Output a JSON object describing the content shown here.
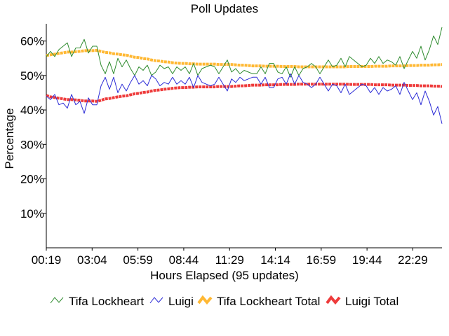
{
  "chart_data": {
    "type": "line",
    "title": "Poll Updates",
    "xlabel": "Hours Elapsed (95 updates)",
    "ylabel": "Percentage",
    "ylim": [
      0,
      65
    ],
    "yticks": [
      10,
      20,
      30,
      40,
      50,
      60
    ],
    "ytick_labels": [
      "10%",
      "20%",
      "30%",
      "40%",
      "50%",
      "60%"
    ],
    "xlim": [
      0,
      95
    ],
    "xticks": [
      0,
      11,
      22,
      33,
      44,
      55,
      66,
      77,
      88
    ],
    "xtick_labels": [
      "00:19",
      "03:04",
      "05:59",
      "08:44",
      "11:29",
      "14:14",
      "16:59",
      "19:44",
      "22:29"
    ],
    "grid": false,
    "legend_position": "bottom",
    "series": [
      {
        "name": "Tifa Lockheart",
        "color": "#2e8b2e",
        "values": [
          55.5,
          57.0,
          55.5,
          57.5,
          58.5,
          59.5,
          55.5,
          58.0,
          58.0,
          60.5,
          56.5,
          58.5,
          58.5,
          53.0,
          50.5,
          54.0,
          50.5,
          55.0,
          52.5,
          54.5,
          52.0,
          50.0,
          52.5,
          51.5,
          53.0,
          50.0,
          51.0,
          53.0,
          52.0,
          52.5,
          50.5,
          52.5,
          51.5,
          52.5,
          50.5,
          53.5,
          50.0,
          52.0,
          52.5,
          53.0,
          52.5,
          50.5,
          52.5,
          54.5,
          51.0,
          52.0,
          50.5,
          51.5,
          51.0,
          50.5,
          50.5,
          52.5,
          50.5,
          53.5,
          53.5,
          51.0,
          50.5,
          52.5,
          49.5,
          52.5,
          50.0,
          52.0,
          52.5,
          53.5,
          52.5,
          50.5,
          52.5,
          54.5,
          52.5,
          53.0,
          55.0,
          52.5,
          55.5,
          54.5,
          53.5,
          52.5,
          53.0,
          55.0,
          53.5,
          55.5,
          53.5,
          54.5,
          54.0,
          53.0,
          55.5,
          52.0,
          54.5,
          57.0,
          55.0,
          58.5,
          54.5,
          57.5,
          61.5,
          59.0,
          64.0
        ]
      },
      {
        "name": "Luigi",
        "color": "#2b2bd6",
        "values": [
          44.0,
          43.0,
          44.5,
          41.5,
          42.0,
          40.5,
          44.5,
          41.5,
          42.5,
          39.0,
          43.5,
          41.5,
          41.5,
          47.0,
          49.5,
          46.0,
          49.5,
          45.0,
          47.5,
          45.5,
          48.0,
          50.0,
          47.5,
          48.5,
          47.0,
          50.0,
          49.0,
          47.0,
          48.0,
          47.5,
          49.5,
          47.5,
          48.5,
          47.5,
          49.5,
          46.5,
          50.0,
          48.0,
          47.5,
          47.0,
          47.5,
          49.5,
          47.5,
          45.5,
          49.0,
          48.0,
          49.5,
          48.5,
          49.0,
          49.5,
          49.5,
          47.5,
          49.5,
          46.5,
          46.5,
          49.0,
          49.5,
          47.5,
          50.5,
          47.5,
          50.0,
          48.0,
          47.5,
          46.5,
          47.5,
          49.5,
          47.5,
          45.5,
          47.5,
          47.0,
          45.0,
          47.5,
          44.5,
          45.5,
          46.5,
          47.5,
          47.0,
          45.0,
          46.5,
          44.5,
          46.5,
          45.5,
          46.0,
          47.0,
          44.5,
          48.0,
          45.5,
          43.0,
          45.0,
          41.5,
          45.5,
          42.5,
          38.5,
          41.0,
          36.0
        ]
      },
      {
        "name": "Tifa Lockheart Total",
        "color": "#ffb833",
        "values": [
          55.8,
          56.0,
          56.2,
          56.4,
          56.6,
          56.8,
          56.8,
          56.9,
          57.0,
          57.2,
          57.2,
          57.2,
          57.3,
          57.0,
          56.7,
          56.6,
          56.3,
          56.2,
          56.0,
          55.9,
          55.6,
          55.3,
          55.2,
          54.9,
          54.8,
          54.5,
          54.3,
          54.2,
          54.0,
          53.9,
          53.7,
          53.6,
          53.5,
          53.5,
          53.4,
          53.4,
          53.3,
          53.3,
          53.3,
          53.3,
          53.3,
          53.2,
          53.2,
          53.2,
          53.2,
          53.1,
          53.0,
          53.0,
          52.9,
          52.8,
          52.8,
          52.8,
          52.7,
          52.7,
          52.7,
          52.7,
          52.6,
          52.6,
          52.6,
          52.6,
          52.5,
          52.5,
          52.5,
          52.5,
          52.5,
          52.5,
          52.5,
          52.5,
          52.5,
          52.5,
          52.5,
          52.5,
          52.6,
          52.6,
          52.6,
          52.6,
          52.6,
          52.6,
          52.7,
          52.7,
          52.7,
          52.7,
          52.8,
          52.8,
          52.8,
          52.8,
          52.9,
          52.9,
          52.9,
          53.0,
          53.0,
          53.0,
          53.1,
          53.1,
          53.2
        ]
      },
      {
        "name": "Luigi Total",
        "color": "#ee3b3b",
        "values": [
          44.2,
          43.8,
          43.6,
          43.4,
          43.2,
          43.0,
          43.0,
          42.9,
          42.8,
          42.6,
          42.6,
          42.6,
          42.5,
          42.8,
          43.2,
          43.3,
          43.6,
          43.8,
          44.0,
          44.1,
          44.4,
          44.7,
          44.8,
          45.1,
          45.2,
          45.5,
          45.7,
          45.8,
          46.0,
          46.1,
          46.3,
          46.4,
          46.5,
          46.5,
          46.6,
          46.6,
          46.7,
          46.7,
          46.7,
          46.7,
          46.7,
          46.8,
          46.8,
          46.8,
          46.8,
          46.9,
          47.0,
          47.0,
          47.1,
          47.2,
          47.2,
          47.2,
          47.3,
          47.3,
          47.3,
          47.3,
          47.4,
          47.4,
          47.4,
          47.4,
          47.5,
          47.5,
          47.5,
          47.5,
          47.5,
          47.5,
          47.5,
          47.5,
          47.5,
          47.5,
          47.5,
          47.5,
          47.4,
          47.4,
          47.4,
          47.4,
          47.4,
          47.4,
          47.3,
          47.3,
          47.3,
          47.3,
          47.2,
          47.2,
          47.2,
          47.2,
          47.1,
          47.1,
          47.1,
          47.0,
          47.0,
          47.0,
          46.9,
          46.9,
          46.8
        ]
      }
    ]
  }
}
